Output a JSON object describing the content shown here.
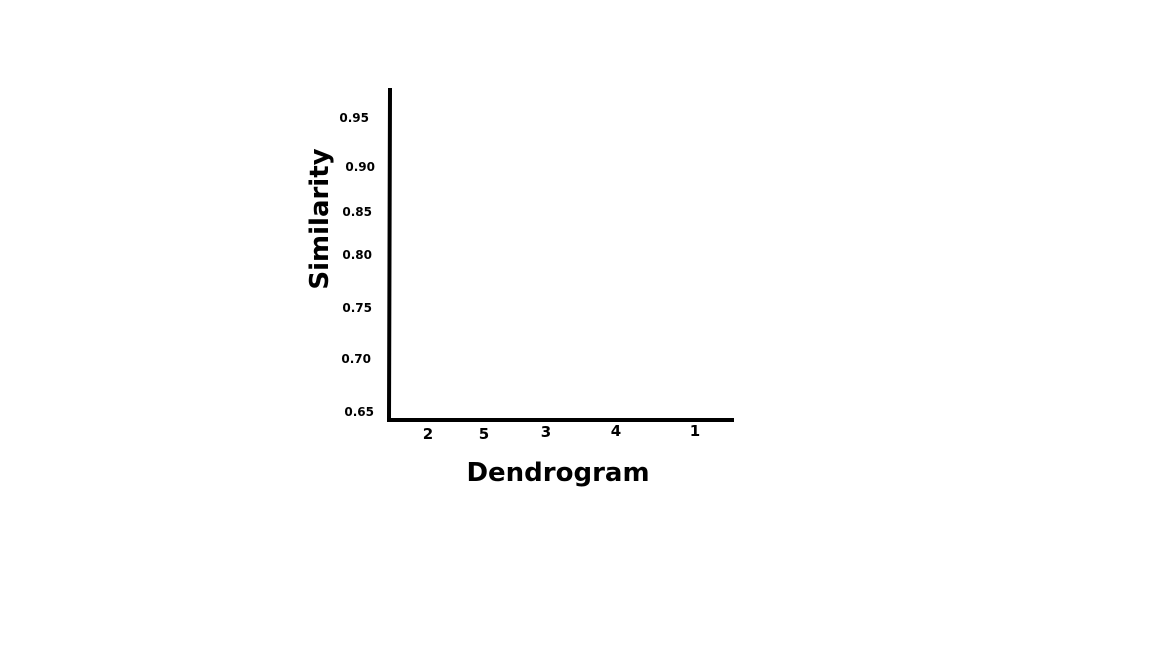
{
  "chart_data": {
    "type": "dendrogram",
    "title": "",
    "xlabel": "Dendrogram",
    "ylabel": "Similarity",
    "categories": [
      "2",
      "5",
      "3",
      "4",
      "1"
    ],
    "yticks": [
      "0.95",
      "0.90",
      "0.85",
      "0.80",
      "0.75",
      "0.70",
      "0.65"
    ],
    "ylim": [
      0.65,
      0.97
    ],
    "grid": false,
    "colors": {
      "axis": "#000000",
      "text": "#000000",
      "background": "#ffffff"
    }
  }
}
